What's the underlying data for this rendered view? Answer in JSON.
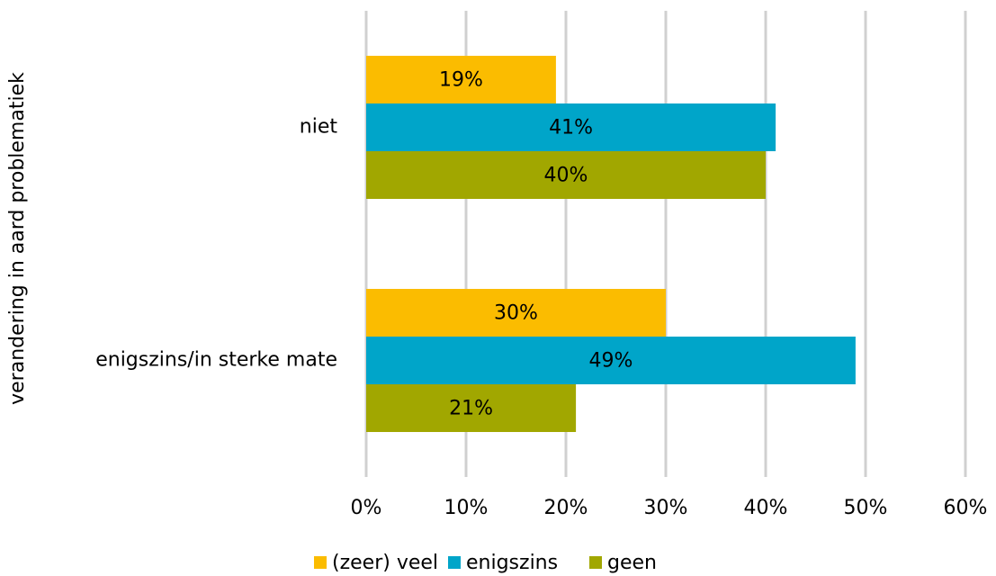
{
  "chart_data": {
    "type": "bar",
    "orientation": "horizontal",
    "y_axis_label": "verandering in aard problematiek",
    "categories": [
      "niet",
      "enigszins/in sterke mate"
    ],
    "series": [
      {
        "name": "(zeer) veel",
        "color": "#fbbc00",
        "values": [
          19,
          30
        ],
        "value_labels": [
          "19%",
          "30%"
        ]
      },
      {
        "name": "enigszins",
        "color": "#00a5c9",
        "values": [
          41,
          49
        ],
        "value_labels": [
          "41%",
          "49%"
        ]
      },
      {
        "name": "geen",
        "color": "#a1a700",
        "values": [
          40,
          21
        ],
        "value_labels": [
          "40%",
          "21%"
        ]
      }
    ],
    "xlim": [
      0,
      60
    ],
    "xticks": [
      {
        "value": 0,
        "label": "0%"
      },
      {
        "value": 10,
        "label": "10%"
      },
      {
        "value": 20,
        "label": "20%"
      },
      {
        "value": 30,
        "label": "30%"
      },
      {
        "value": 40,
        "label": "40%"
      },
      {
        "value": 50,
        "label": "50%"
      },
      {
        "value": 60,
        "label": "60%"
      }
    ],
    "grid": true,
    "legend": "bottom"
  }
}
